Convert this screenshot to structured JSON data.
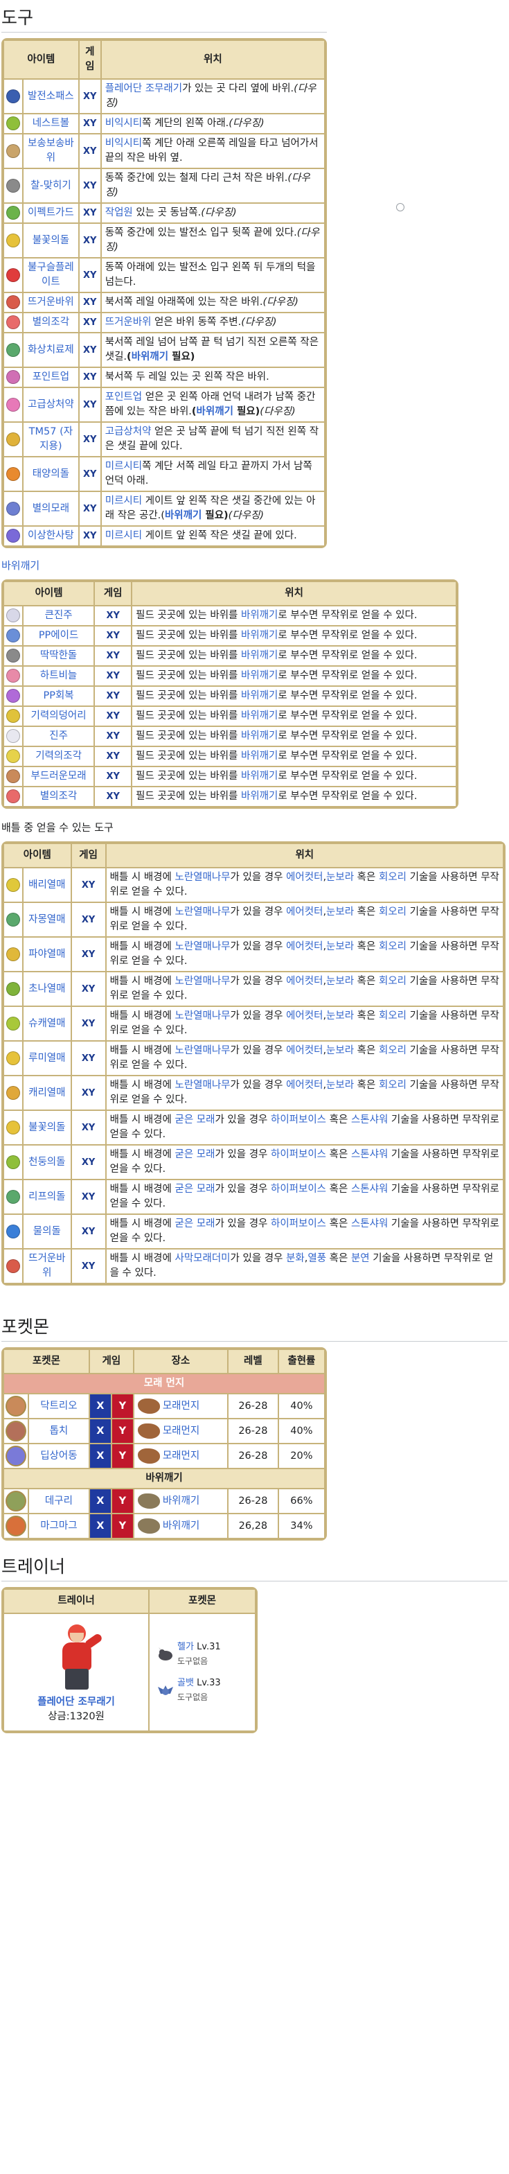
{
  "sections": {
    "items_title": "도구",
    "rock_smash_title": "바위깨기",
    "battle_items_title": "배틀 중 얻을 수 있는 도구",
    "pokemon_title": "포켓몬",
    "trainer_title": "트레이너"
  },
  "items_table": {
    "headers": [
      "아이템",
      "게임",
      "위치"
    ],
    "rows": [
      {
        "name": "발전소패스",
        "icon_color": "#3a5fb0",
        "game": "XY",
        "loc": [
          {
            "t": "플레어단 조무래기",
            "l": 1
          },
          {
            "t": "가 있는 곳 다리 옆에 바위."
          },
          {
            "t": "(다우징)",
            "i": 1
          }
        ]
      },
      {
        "name": "네스트볼",
        "icon_color": "#8fbf3a",
        "game": "XY",
        "loc": [
          {
            "t": "비익시티",
            "l": 1
          },
          {
            "t": "쪽 계단의 왼쪽 아래."
          },
          {
            "t": "(다우징)",
            "i": 1
          }
        ]
      },
      {
        "name": "보송보송바위",
        "icon_color": "#c9a46a",
        "game": "XY",
        "loc": [
          {
            "t": "비익시티",
            "l": 1
          },
          {
            "t": "쪽 계단 아래 오른쪽 레일을 타고 넘어가서 끝의 작은 바위 옆."
          }
        ]
      },
      {
        "name": "찰-맞히기",
        "icon_color": "#8a8a8a",
        "game": "XY",
        "loc": [
          {
            "t": "동쪽 중간에 있는 철제 다리 근처 작은 바위."
          },
          {
            "t": "(다우징)",
            "i": 1
          }
        ]
      },
      {
        "name": "이펙트가드",
        "icon_color": "#6bb34a",
        "game": "XY",
        "loc": [
          {
            "t": "작업원",
            "l": 1
          },
          {
            "t": " 있는 곳 동남쪽."
          },
          {
            "t": "(다우징)",
            "i": 1
          }
        ]
      },
      {
        "name": "불꽃의돌",
        "icon_color": "#e6c23a",
        "game": "XY",
        "loc": [
          {
            "t": "동쪽 중간에 있는 발전소 입구 뒷쪽 끝에 있다."
          },
          {
            "t": "(다우징)",
            "i": 1
          }
        ]
      },
      {
        "name": "불구슬플레이트",
        "icon_color": "#e03c3c",
        "game": "XY",
        "loc": [
          {
            "t": "동쪽 아래에 있는 발전소 입구 왼쪽 뒤 두개의 턱을 넘는다."
          }
        ]
      },
      {
        "name": "뜨거운바위",
        "icon_color": "#d95b4a",
        "game": "XY",
        "loc": [
          {
            "t": "북서쪽 레일 아래쪽에 있는 작은 바위."
          },
          {
            "t": "(다우징)",
            "i": 1
          }
        ]
      },
      {
        "name": "별의조각",
        "icon_color": "#e86a6a",
        "game": "XY",
        "loc": [
          {
            "t": "뜨거운바위",
            "l": 1
          },
          {
            "t": " 얻은 바위 동쪽 주변."
          },
          {
            "t": "(다우징)",
            "i": 1
          }
        ]
      },
      {
        "name": "화상치료제",
        "icon_color": "#5aa86c",
        "game": "XY",
        "loc": [
          {
            "t": "북서쪽 레일 넘어 남쪽 끝 턱 넘기 직전 오른쪽 작은 샛길."
          },
          {
            "t": "(",
            "b": 1
          },
          {
            "t": "바위깨기",
            "l": 1,
            "b": 1
          },
          {
            "t": " 필요)",
            "b": 1
          }
        ]
      },
      {
        "name": "포인트업",
        "icon_color": "#d06fb4",
        "game": "XY",
        "loc": [
          {
            "t": "북서쪽 두 레일 있는 곳 왼쪽 작은 바위."
          }
        ]
      },
      {
        "name": "고급상처약",
        "icon_color": "#e779b8",
        "game": "XY",
        "loc": [
          {
            "t": "포인트업",
            "l": 1
          },
          {
            "t": " 얻은 곳 왼쪽 아래 언덕 내려가 남쪽 중간 쯤에 있는 작은 바위."
          },
          {
            "t": "(",
            "b": 1
          },
          {
            "t": "바위깨기",
            "l": 1,
            "b": 1
          },
          {
            "t": " 필요)",
            "b": 1
          },
          {
            "t": "(다우징)",
            "i": 1
          }
        ]
      },
      {
        "name": "TM57 (자지용)",
        "icon_color": "#e0b23a",
        "game": "XY",
        "loc": [
          {
            "t": "고급상처약",
            "l": 1
          },
          {
            "t": " 얻은 곳 남쪽 끝에 턱 넘기 직전 왼쪽 작은 샛길 끝에 있다."
          }
        ]
      },
      {
        "name": "태양의돌",
        "icon_color": "#e88a2e",
        "game": "XY",
        "loc": [
          {
            "t": "미르시티",
            "l": 1
          },
          {
            "t": "쪽 계단 서쪽 레일 타고 끝까지 가서 남쪽 언덕 아래."
          }
        ]
      },
      {
        "name": "별의모래",
        "icon_color": "#6d7fd1",
        "game": "XY",
        "loc": [
          {
            "t": "미르시티",
            "l": 1
          },
          {
            "t": " 게이트 앞 왼쪽 작은 샛길 중간에 있는 아래 작은 공간.("
          },
          {
            "t": "바위깨기",
            "l": 1,
            "b": 1
          },
          {
            "t": " 필요)",
            "b": 1
          },
          {
            "t": "(다우징)",
            "i": 1
          }
        ]
      },
      {
        "name": "이상한사탕",
        "icon_color": "#7a6ad8",
        "game": "XY",
        "loc": [
          {
            "t": "미르시티",
            "l": 1
          },
          {
            "t": " 게이트 앞 왼쪽 작은 샛길 끝에 있다."
          }
        ]
      }
    ]
  },
  "rock_table": {
    "headers": [
      "아이템",
      "게임",
      "위치"
    ],
    "desc_pre": "필드 곳곳에 있는 바위를 ",
    "desc_link": "바위깨기",
    "desc_post": "로 부수면 무작위로 얻을 수 있다.",
    "rows": [
      {
        "name": "큰진주",
        "icon_color": "#d8d8e8",
        "game": "XY"
      },
      {
        "name": "PP에이드",
        "icon_color": "#6a8fd8",
        "game": "XY"
      },
      {
        "name": "딱딱한돌",
        "icon_color": "#8a8a8a",
        "game": "XY"
      },
      {
        "name": "하트비늘",
        "icon_color": "#e88aa8",
        "game": "XY"
      },
      {
        "name": "PP회복",
        "icon_color": "#b06ad8",
        "game": "XY"
      },
      {
        "name": "기력의덩어리",
        "icon_color": "#e0c23a",
        "game": "XY"
      },
      {
        "name": "진주",
        "icon_color": "#e8e8f0",
        "game": "XY"
      },
      {
        "name": "기력의조각",
        "icon_color": "#e6d24a",
        "game": "XY"
      },
      {
        "name": "부드러운모래",
        "icon_color": "#c98a5a",
        "game": "XY"
      },
      {
        "name": "별의조각",
        "icon_color": "#e86a6a",
        "game": "XY"
      }
    ]
  },
  "battle_table": {
    "headers": [
      "아이템",
      "게임",
      "위치"
    ],
    "rows": [
      {
        "name": "배리열매",
        "icon_color": "#e0c83a",
        "game": "XY",
        "loc": [
          {
            "t": "배틀 시 배경에 "
          },
          {
            "t": "노란열매나무",
            "l": 1
          },
          {
            "t": "가 있을 경우 "
          },
          {
            "t": "에어컷터",
            "l": 1
          },
          {
            "t": ","
          },
          {
            "t": "눈보라",
            "l": 1
          },
          {
            "t": " 혹은 "
          },
          {
            "t": "회오리",
            "l": 1
          },
          {
            "t": " 기술을 사용하면 무작위로 얻을 수 있다."
          }
        ]
      },
      {
        "name": "자몽열매",
        "icon_color": "#5aa86c",
        "game": "XY",
        "loc": [
          {
            "t": "배틀 시 배경에 "
          },
          {
            "t": "노란열매나무",
            "l": 1
          },
          {
            "t": "가 있을 경우 "
          },
          {
            "t": "에어컷터",
            "l": 1
          },
          {
            "t": ","
          },
          {
            "t": "눈보라",
            "l": 1
          },
          {
            "t": " 혹은 "
          },
          {
            "t": "회오리",
            "l": 1
          },
          {
            "t": " 기술을 사용하면 무작위로 얻을 수 있다."
          }
        ]
      },
      {
        "name": "파야열매",
        "icon_color": "#e0b83a",
        "game": "XY",
        "loc": [
          {
            "t": "배틀 시 배경에 "
          },
          {
            "t": "노란열매나무",
            "l": 1
          },
          {
            "t": "가 있을 경우 "
          },
          {
            "t": "에어컷터",
            "l": 1
          },
          {
            "t": ","
          },
          {
            "t": "눈보라",
            "l": 1
          },
          {
            "t": " 혹은 "
          },
          {
            "t": "회오리",
            "l": 1
          },
          {
            "t": " 기술을 사용하면 무작위로 얻을 수 있다."
          }
        ]
      },
      {
        "name": "초나열매",
        "icon_color": "#7fb33a",
        "game": "XY",
        "loc": [
          {
            "t": "배틀 시 배경에 "
          },
          {
            "t": "노란열매나무",
            "l": 1
          },
          {
            "t": "가 있을 경우 "
          },
          {
            "t": "에어컷터",
            "l": 1
          },
          {
            "t": ","
          },
          {
            "t": "눈보라",
            "l": 1
          },
          {
            "t": " 혹은 "
          },
          {
            "t": "회오리",
            "l": 1
          },
          {
            "t": " 기술을 사용하면 무작위로 얻을 수 있다."
          }
        ]
      },
      {
        "name": "슈캐열매",
        "icon_color": "#a8c83a",
        "game": "XY",
        "loc": [
          {
            "t": "배틀 시 배경에 "
          },
          {
            "t": "노란열매나무",
            "l": 1
          },
          {
            "t": "가 있을 경우 "
          },
          {
            "t": "에어컷터",
            "l": 1
          },
          {
            "t": ","
          },
          {
            "t": "눈보라",
            "l": 1
          },
          {
            "t": " 혹은 "
          },
          {
            "t": "회오리",
            "l": 1
          },
          {
            "t": " 기술을 사용하면 무작위로 얻을 수 있다."
          }
        ]
      },
      {
        "name": "루미열매",
        "icon_color": "#e6c23a",
        "game": "XY",
        "loc": [
          {
            "t": "배틀 시 배경에 "
          },
          {
            "t": "노란열매나무",
            "l": 1
          },
          {
            "t": "가 있을 경우 "
          },
          {
            "t": "에어컷터",
            "l": 1
          },
          {
            "t": ","
          },
          {
            "t": "눈보라",
            "l": 1
          },
          {
            "t": " 혹은 "
          },
          {
            "t": "회오리",
            "l": 1
          },
          {
            "t": " 기술을 사용하면 무작위로 얻을 수 있다."
          }
        ]
      },
      {
        "name": "캐리열매",
        "icon_color": "#e0a83a",
        "game": "XY",
        "loc": [
          {
            "t": "배틀 시 배경에 "
          },
          {
            "t": "노란열매나무",
            "l": 1
          },
          {
            "t": "가 있을 경우 "
          },
          {
            "t": "에어컷터",
            "l": 1
          },
          {
            "t": ","
          },
          {
            "t": "눈보라",
            "l": 1
          },
          {
            "t": " 혹은 "
          },
          {
            "t": "회오리",
            "l": 1
          },
          {
            "t": " 기술을 사용하면 무작위로 얻을 수 있다."
          }
        ]
      },
      {
        "name": "불꽃의돌",
        "icon_color": "#e6c23a",
        "game": "XY",
        "loc": [
          {
            "t": "배틀 시 배경에 "
          },
          {
            "t": "굳은 모래",
            "l": 1
          },
          {
            "t": "가 있을 경우 "
          },
          {
            "t": "하이퍼보이스",
            "l": 1
          },
          {
            "t": " 혹은 "
          },
          {
            "t": "스톤샤워",
            "l": 1
          },
          {
            "t": " 기술을 사용하면 무작위로 얻을 수 있다."
          }
        ]
      },
      {
        "name": "천둥의돌",
        "icon_color": "#8fbf3a",
        "game": "XY",
        "loc": [
          {
            "t": "배틀 시 배경에 "
          },
          {
            "t": "굳은 모래",
            "l": 1
          },
          {
            "t": "가 있을 경우 "
          },
          {
            "t": "하이퍼보이스",
            "l": 1
          },
          {
            "t": " 혹은 "
          },
          {
            "t": "스톤샤워",
            "l": 1
          },
          {
            "t": " 기술을 사용하면 무작위로 얻을 수 있다."
          }
        ]
      },
      {
        "name": "리프의돌",
        "icon_color": "#5aa86c",
        "game": "XY",
        "loc": [
          {
            "t": "배틀 시 배경에 "
          },
          {
            "t": "굳은 모래",
            "l": 1
          },
          {
            "t": "가 있을 경우 "
          },
          {
            "t": "하이퍼보이스",
            "l": 1
          },
          {
            "t": " 혹은 "
          },
          {
            "t": "스톤샤워",
            "l": 1
          },
          {
            "t": " 기술을 사용하면 무작위로 얻을 수 있다."
          }
        ]
      },
      {
        "name": "물의돌",
        "icon_color": "#3a7fd8",
        "game": "XY",
        "loc": [
          {
            "t": "배틀 시 배경에 "
          },
          {
            "t": "굳은 모래",
            "l": 1
          },
          {
            "t": "가 있을 경우 "
          },
          {
            "t": "하이퍼보이스",
            "l": 1
          },
          {
            "t": " 혹은 "
          },
          {
            "t": "스톤샤워",
            "l": 1
          },
          {
            "t": " 기술을 사용하면 무작위로 얻을 수 있다."
          }
        ]
      },
      {
        "name": "뜨거운바위",
        "icon_color": "#d95b4a",
        "game": "XY",
        "loc": [
          {
            "t": "배틀 시 배경에 "
          },
          {
            "t": "사막모래더미",
            "l": 1
          },
          {
            "t": "가 있을 경우 "
          },
          {
            "t": "분화",
            "l": 1
          },
          {
            "t": ","
          },
          {
            "t": "열풍",
            "l": 1
          },
          {
            "t": " 혹은 "
          },
          {
            "t": "분연",
            "l": 1
          },
          {
            "t": " 기술을 사용하면 무작위로 얻을 수 있다."
          }
        ]
      }
    ]
  },
  "pokemon_table": {
    "headers": [
      "포켓몬",
      "게임",
      "장소",
      "레벨",
      "출현률"
    ],
    "groups": [
      {
        "title": "모래 먼지",
        "rows": [
          {
            "name": "닥트리오",
            "x": "X",
            "y": "Y",
            "place": "모래먼지",
            "level": "26-28",
            "rate": "40%"
          },
          {
            "name": "톱치",
            "x": "X",
            "y": "Y",
            "place": "모래먼지",
            "level": "26-28",
            "rate": "40%"
          },
          {
            "name": "딥상어동",
            "x": "X",
            "y": "Y",
            "place": "모래먼지",
            "level": "26-28",
            "rate": "20%"
          }
        ]
      },
      {
        "title": "바위깨기",
        "rows": [
          {
            "name": "데구리",
            "x": "X",
            "y": "Y",
            "place": "바위깨기",
            "level": "26-28",
            "rate": "66%"
          },
          {
            "name": "마그마그",
            "x": "X",
            "y": "Y",
            "place": "바위깨기",
            "level": "26,28",
            "rate": "34%"
          }
        ]
      }
    ]
  },
  "trainer_table": {
    "headers": [
      "트레이너",
      "포켓몬"
    ],
    "trainer_name": "플레어단 조무래기",
    "reward": "상금:1320원",
    "pokemon": [
      {
        "name": "헬가",
        "level": "Lv.31",
        "item": "도구없음"
      },
      {
        "name": "골뱃",
        "level": "Lv.33",
        "item": "도구없음"
      }
    ]
  }
}
